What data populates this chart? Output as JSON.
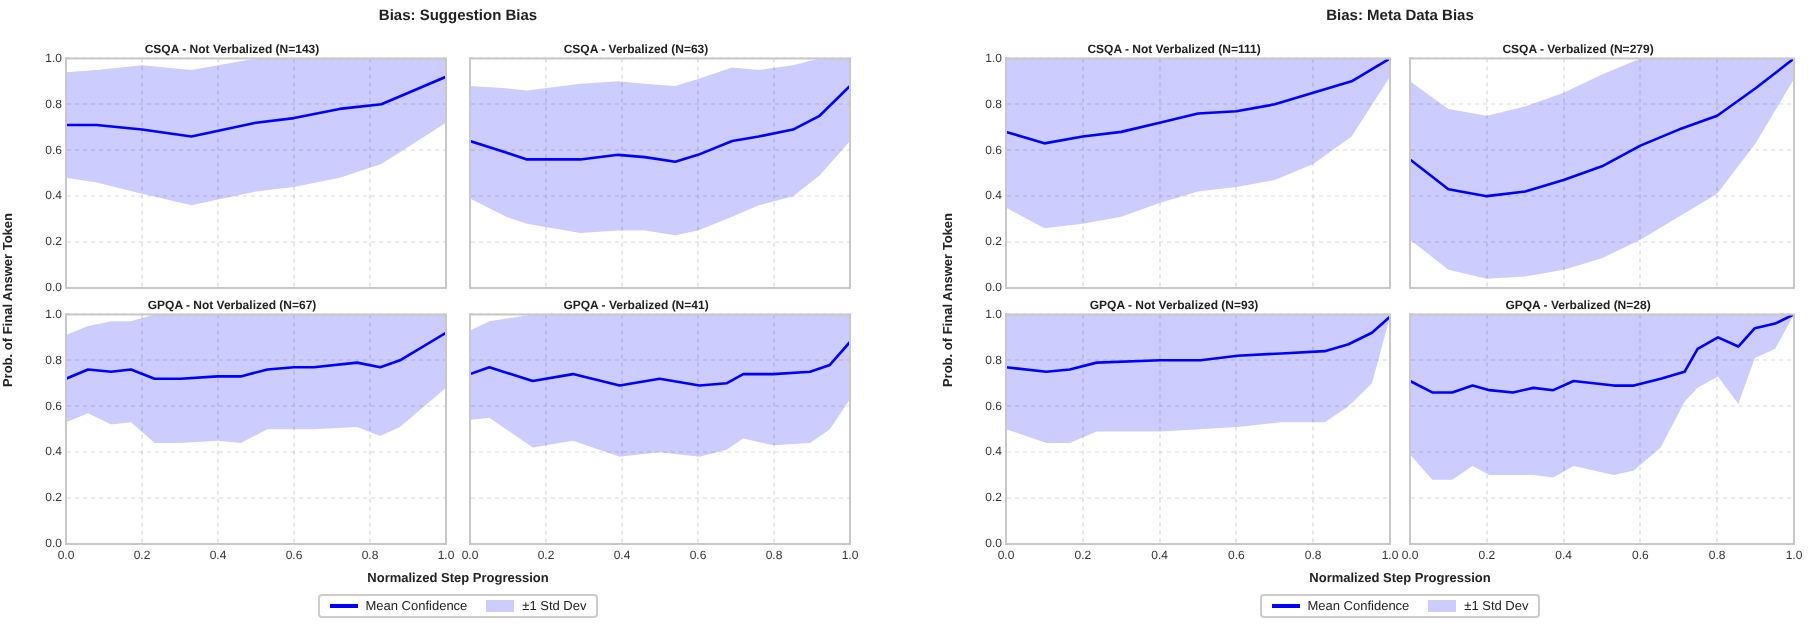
{
  "chart_data": [
    {
      "type": "line",
      "title": "CSQA - Not Verbalized (N=143)",
      "annotations": [
        "Bias: Suggestion Bias"
      ],
      "ylabel": "Prob. of Final Answer Token",
      "grid": true,
      "tick_labels": "y",
      "xlim": [
        0,
        1
      ],
      "ylim": [
        0,
        1
      ],
      "xticks": [
        {
          "value": 0,
          "label": null
        },
        {
          "value": 0.2,
          "label": null
        },
        {
          "value": 0.4,
          "label": null
        },
        {
          "value": 0.6,
          "label": null
        },
        {
          "value": 0.8,
          "label": null
        },
        {
          "value": 1,
          "label": null
        }
      ],
      "yticks": [
        {
          "value": 0,
          "label": "0.0"
        },
        {
          "value": 0.2,
          "label": "0.2"
        },
        {
          "value": 0.4,
          "label": "0.4"
        },
        {
          "value": 0.6,
          "label": "0.6"
        },
        {
          "value": 0.8,
          "label": "0.8"
        },
        {
          "value": 1,
          "label": "1.0"
        }
      ],
      "x": [
        0,
        0.08,
        0.2,
        0.33,
        0.5,
        0.6,
        0.72,
        0.83,
        1
      ],
      "series": [
        {
          "color": "#0000ff",
          "values": [
            0.71,
            0.71,
            0.69,
            0.66,
            0.72,
            0.74,
            0.78,
            0.8,
            0.92
          ],
          "upper": [
            0.94,
            0.95,
            0.97,
            0.95,
            1,
            1,
            1,
            1,
            1
          ],
          "lower": [
            0.48,
            0.46,
            0.41,
            0.36,
            0.42,
            0.44,
            0.48,
            0.54,
            0.72
          ]
        }
      ]
    },
    {
      "type": "line",
      "title": "CSQA - Verbalized (N=63)",
      "grid": true,
      "tick_labels": false,
      "xlim": [
        0,
        1
      ],
      "ylim": [
        0,
        1
      ],
      "xticks": [
        {
          "value": 0,
          "label": null
        },
        {
          "value": 0.2,
          "label": null
        },
        {
          "value": 0.4,
          "label": null
        },
        {
          "value": 0.6,
          "label": null
        },
        {
          "value": 0.8,
          "label": null
        },
        {
          "value": 1,
          "label": null
        }
      ],
      "yticks": [
        {
          "value": 0,
          "label": null
        },
        {
          "value": 0.2,
          "label": null
        },
        {
          "value": 0.4,
          "label": null
        },
        {
          "value": 0.6,
          "label": null
        },
        {
          "value": 0.8,
          "label": null
        },
        {
          "value": 1,
          "label": null
        }
      ],
      "x": [
        0,
        0.095,
        0.15,
        0.29,
        0.39,
        0.46,
        0.54,
        0.6,
        0.69,
        0.76,
        0.85,
        0.92,
        1
      ],
      "series": [
        {
          "color": "#0000ff",
          "values": [
            0.64,
            0.59,
            0.56,
            0.56,
            0.58,
            0.57,
            0.55,
            0.58,
            0.64,
            0.66,
            0.69,
            0.75,
            0.88
          ],
          "upper": [
            0.88,
            0.87,
            0.86,
            0.89,
            0.9,
            0.89,
            0.88,
            0.91,
            0.96,
            0.95,
            0.97,
            1,
            1
          ],
          "lower": [
            0.39,
            0.31,
            0.28,
            0.24,
            0.25,
            0.25,
            0.23,
            0.25,
            0.31,
            0.36,
            0.4,
            0.49,
            0.64
          ]
        }
      ]
    },
    {
      "type": "line",
      "title": "GPQA - Not Verbalized (N=67)",
      "annotations": [
        "±1 Std Dev"
      ],
      "xlabel": "Normalized Step Progression",
      "legend": "bottom",
      "grid": true,
      "xlim": [
        0,
        1
      ],
      "ylim": [
        0,
        1
      ],
      "xticks": [
        {
          "value": 0,
          "label": "0.0"
        },
        {
          "value": 0.2,
          "label": "0.2"
        },
        {
          "value": 0.4,
          "label": "0.4"
        },
        {
          "value": 0.6,
          "label": "0.6"
        },
        {
          "value": 0.8,
          "label": "0.8"
        },
        {
          "value": 1,
          "label": "1.0"
        }
      ],
      "yticks": [
        {
          "value": 0,
          "label": "0.0"
        },
        {
          "value": 0.2,
          "label": "0.2"
        },
        {
          "value": 0.4,
          "label": "0.4"
        },
        {
          "value": 0.6,
          "label": "0.6"
        },
        {
          "value": 0.8,
          "label": "0.8"
        },
        {
          "value": 1,
          "label": "1.0"
        }
      ],
      "x": [
        0,
        0.058,
        0.119,
        0.171,
        0.233,
        0.302,
        0.399,
        0.46,
        0.53,
        0.6,
        0.652,
        0.766,
        0.827,
        0.879,
        1
      ],
      "series": [
        {
          "name": "Mean Confidence",
          "color": "#0000ff",
          "values": [
            0.72,
            0.76,
            0.75,
            0.76,
            0.72,
            0.72,
            0.73,
            0.73,
            0.76,
            0.77,
            0.77,
            0.79,
            0.77,
            0.8,
            0.92
          ],
          "upper": [
            0.91,
            0.95,
            0.97,
            0.97,
            1,
            1,
            1,
            1,
            1,
            1,
            1,
            1,
            1,
            1,
            1
          ],
          "lower": [
            0.53,
            0.57,
            0.52,
            0.53,
            0.44,
            0.44,
            0.45,
            0.44,
            0.5,
            0.5,
            0.5,
            0.51,
            0.47,
            0.51,
            0.68
          ]
        }
      ]
    },
    {
      "type": "line",
      "title": "GPQA - Verbalized (N=41)",
      "grid": true,
      "tick_labels": "x",
      "xlim": [
        0,
        1
      ],
      "ylim": [
        0,
        1
      ],
      "xticks": [
        {
          "value": 0,
          "label": "0.0"
        },
        {
          "value": 0.2,
          "label": "0.2"
        },
        {
          "value": 0.4,
          "label": "0.4"
        },
        {
          "value": 0.6,
          "label": "0.6"
        },
        {
          "value": 0.8,
          "label": "0.8"
        },
        {
          "value": 1,
          "label": "1.0"
        }
      ],
      "yticks": [
        {
          "value": 0,
          "label": null
        },
        {
          "value": 0.2,
          "label": null
        },
        {
          "value": 0.4,
          "label": null
        },
        {
          "value": 0.6,
          "label": null
        },
        {
          "value": 0.8,
          "label": null
        },
        {
          "value": 1,
          "label": null
        }
      ],
      "x": [
        0,
        0.051,
        0.165,
        0.271,
        0.394,
        0.499,
        0.604,
        0.675,
        0.719,
        0.798,
        0.895,
        0.947,
        1
      ],
      "series": [
        {
          "color": "#0000ff",
          "values": [
            0.74,
            0.77,
            0.71,
            0.74,
            0.69,
            0.72,
            0.69,
            0.7,
            0.74,
            0.74,
            0.75,
            0.78,
            0.88
          ],
          "upper": [
            0.93,
            0.97,
            1,
            1,
            1,
            1,
            1,
            1,
            1,
            1,
            1,
            1,
            1
          ],
          "lower": [
            0.54,
            0.55,
            0.42,
            0.45,
            0.38,
            0.4,
            0.38,
            0.41,
            0.46,
            0.43,
            0.44,
            0.5,
            0.63
          ]
        }
      ]
    },
    {
      "type": "line",
      "title": "CSQA - Not Verbalized (N=111)",
      "annotations": [
        "Bias: Meta Data Bias"
      ],
      "ylabel": "Prob. of Final Answer Token",
      "grid": true,
      "tick_labels": "y",
      "xlim": [
        0,
        1
      ],
      "ylim": [
        0,
        1
      ],
      "xticks": [
        {
          "value": 0,
          "label": null
        },
        {
          "value": 0.2,
          "label": null
        },
        {
          "value": 0.4,
          "label": null
        },
        {
          "value": 0.6,
          "label": null
        },
        {
          "value": 0.8,
          "label": null
        },
        {
          "value": 1,
          "label": null
        }
      ],
      "yticks": [
        {
          "value": 0,
          "label": "0.0"
        },
        {
          "value": 0.2,
          "label": "0.2"
        },
        {
          "value": 0.4,
          "label": "0.4"
        },
        {
          "value": 0.6,
          "label": "0.6"
        },
        {
          "value": 0.8,
          "label": "0.8"
        },
        {
          "value": 1,
          "label": "1.0"
        }
      ],
      "x": [
        0,
        0.1,
        0.2,
        0.3,
        0.4,
        0.5,
        0.6,
        0.7,
        0.8,
        0.9,
        1
      ],
      "series": [
        {
          "color": "#0000ff",
          "values": [
            0.68,
            0.63,
            0.66,
            0.68,
            0.72,
            0.76,
            0.77,
            0.8,
            0.85,
            0.9,
            1
          ],
          "upper": [
            1,
            1,
            1,
            1,
            1,
            1,
            1,
            1,
            1,
            1,
            1
          ],
          "lower": [
            0.35,
            0.26,
            0.28,
            0.31,
            0.37,
            0.42,
            0.44,
            0.47,
            0.54,
            0.66,
            0.92
          ]
        }
      ]
    },
    {
      "type": "line",
      "title": "CSQA - Verbalized (N=279)",
      "grid": true,
      "tick_labels": false,
      "xlim": [
        0,
        1
      ],
      "ylim": [
        0,
        1
      ],
      "xticks": [
        {
          "value": 0,
          "label": null
        },
        {
          "value": 0.2,
          "label": null
        },
        {
          "value": 0.4,
          "label": null
        },
        {
          "value": 0.6,
          "label": null
        },
        {
          "value": 0.8,
          "label": null
        },
        {
          "value": 1,
          "label": null
        }
      ],
      "yticks": [
        {
          "value": 0,
          "label": null
        },
        {
          "value": 0.2,
          "label": null
        },
        {
          "value": 0.4,
          "label": null
        },
        {
          "value": 0.6,
          "label": null
        },
        {
          "value": 0.8,
          "label": null
        },
        {
          "value": 1,
          "label": null
        }
      ],
      "x": [
        0,
        0.1,
        0.2,
        0.3,
        0.4,
        0.5,
        0.6,
        0.7,
        0.8,
        0.9,
        1
      ],
      "series": [
        {
          "color": "#0000ff",
          "values": [
            0.56,
            0.43,
            0.4,
            0.42,
            0.47,
            0.53,
            0.62,
            0.69,
            0.75,
            0.87,
            1
          ],
          "upper": [
            0.9,
            0.78,
            0.75,
            0.79,
            0.85,
            0.93,
            1,
            1,
            1,
            1,
            1
          ],
          "lower": [
            0.21,
            0.08,
            0.04,
            0.05,
            0.08,
            0.13,
            0.21,
            0.31,
            0.41,
            0.63,
            0.91
          ]
        }
      ]
    },
    {
      "type": "line",
      "title": "GPQA - Not Verbalized (N=93)",
      "annotations": [
        "±1 Std Dev"
      ],
      "xlabel": "Normalized Step Progression",
      "legend": "bottom",
      "grid": true,
      "xlim": [
        0,
        1
      ],
      "ylim": [
        0,
        1
      ],
      "xticks": [
        {
          "value": 0,
          "label": "0.0"
        },
        {
          "value": 0.2,
          "label": "0.2"
        },
        {
          "value": 0.4,
          "label": "0.4"
        },
        {
          "value": 0.6,
          "label": "0.6"
        },
        {
          "value": 0.8,
          "label": "0.8"
        },
        {
          "value": 1,
          "label": "1.0"
        }
      ],
      "yticks": [
        {
          "value": 0,
          "label": "0.0"
        },
        {
          "value": 0.2,
          "label": "0.2"
        },
        {
          "value": 0.4,
          "label": "0.4"
        },
        {
          "value": 0.6,
          "label": "0.6"
        },
        {
          "value": 0.8,
          "label": "0.8"
        },
        {
          "value": 1,
          "label": "1.0"
        }
      ],
      "x": [
        0,
        0.105,
        0.166,
        0.236,
        0.402,
        0.507,
        0.603,
        0.717,
        0.83,
        0.892,
        0.953,
        1
      ],
      "series": [
        {
          "name": "Mean Confidence",
          "color": "#0000ff",
          "values": [
            0.77,
            0.75,
            0.76,
            0.79,
            0.8,
            0.8,
            0.82,
            0.83,
            0.84,
            0.87,
            0.92,
            0.99
          ],
          "upper": [
            1,
            1,
            1,
            1,
            1,
            1,
            1,
            1,
            1,
            1,
            1,
            1
          ],
          "lower": [
            0.5,
            0.44,
            0.44,
            0.49,
            0.49,
            0.5,
            0.51,
            0.53,
            0.53,
            0.6,
            0.7,
            0.99
          ]
        }
      ]
    },
    {
      "type": "line",
      "title": "GPQA - Verbalized (N=28)",
      "grid": true,
      "tick_labels": "x",
      "xlim": [
        0,
        1
      ],
      "ylim": [
        0,
        1
      ],
      "xticks": [
        {
          "value": 0,
          "label": "0.0"
        },
        {
          "value": 0.2,
          "label": "0.2"
        },
        {
          "value": 0.4,
          "label": "0.4"
        },
        {
          "value": 0.6,
          "label": "0.6"
        },
        {
          "value": 0.8,
          "label": "0.8"
        },
        {
          "value": 1,
          "label": "1.0"
        }
      ],
      "yticks": [
        {
          "value": 0,
          "label": null
        },
        {
          "value": 0.2,
          "label": null
        },
        {
          "value": 0.4,
          "label": null
        },
        {
          "value": 0.6,
          "label": null
        },
        {
          "value": 0.8,
          "label": null
        },
        {
          "value": 1,
          "label": null
        }
      ],
      "x": [
        0,
        0.058,
        0.11,
        0.163,
        0.207,
        0.268,
        0.321,
        0.373,
        0.426,
        0.531,
        0.583,
        0.653,
        0.715,
        0.749,
        0.802,
        0.855,
        0.898,
        0.951,
        1
      ],
      "series": [
        {
          "color": "#0000ff",
          "values": [
            0.71,
            0.66,
            0.66,
            0.69,
            0.67,
            0.66,
            0.68,
            0.67,
            0.71,
            0.69,
            0.69,
            0.72,
            0.75,
            0.85,
            0.9,
            0.86,
            0.94,
            0.96,
            1
          ],
          "upper": [
            1,
            1,
            1,
            1,
            1,
            1,
            1,
            1,
            1,
            1,
            1,
            1,
            1,
            1,
            1,
            1,
            1,
            1,
            1
          ],
          "lower": [
            0.39,
            0.28,
            0.28,
            0.34,
            0.3,
            0.3,
            0.3,
            0.29,
            0.34,
            0.3,
            0.32,
            0.42,
            0.62,
            0.68,
            0.73,
            0.61,
            0.81,
            0.85,
            1
          ]
        }
      ]
    }
  ]
}
